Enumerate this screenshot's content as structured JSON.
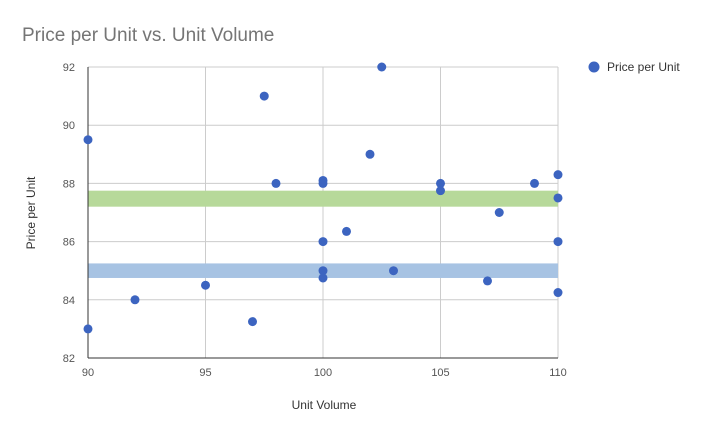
{
  "chart_data": {
    "type": "scatter",
    "title": "Price per Unit vs. Unit Volume",
    "xlabel": "Unit Volume",
    "ylabel": "Price per Unit",
    "xlim": [
      90,
      110
    ],
    "ylim": [
      82,
      92
    ],
    "x_ticks": [
      "90",
      "95",
      "100",
      "105",
      "110"
    ],
    "y_ticks": [
      "82",
      "84",
      "86",
      "88",
      "90",
      "92"
    ],
    "grid": true,
    "legend_position": "right",
    "series": [
      {
        "name": "Price per Unit",
        "color": "#3c64c0",
        "points": [
          {
            "x": 90,
            "y": 89.5
          },
          {
            "x": 90,
            "y": 83.0
          },
          {
            "x": 92,
            "y": 84.0
          },
          {
            "x": 95,
            "y": 84.5
          },
          {
            "x": 97,
            "y": 83.25
          },
          {
            "x": 97.5,
            "y": 91.0
          },
          {
            "x": 98,
            "y": 88.0
          },
          {
            "x": 100,
            "y": 88.1
          },
          {
            "x": 100,
            "y": 88.0
          },
          {
            "x": 100,
            "y": 86.0
          },
          {
            "x": 100,
            "y": 85.0
          },
          {
            "x": 100,
            "y": 84.75
          },
          {
            "x": 101,
            "y": 86.35
          },
          {
            "x": 102,
            "y": 89.0
          },
          {
            "x": 102.5,
            "y": 92.0
          },
          {
            "x": 103,
            "y": 85.0
          },
          {
            "x": 105,
            "y": 88.0
          },
          {
            "x": 105,
            "y": 87.75
          },
          {
            "x": 107,
            "y": 84.65
          },
          {
            "x": 107.5,
            "y": 87.0
          },
          {
            "x": 109,
            "y": 88.0
          },
          {
            "x": 110,
            "y": 88.3
          },
          {
            "x": 110,
            "y": 87.5
          },
          {
            "x": 110,
            "y": 86.0
          },
          {
            "x": 110,
            "y": 84.25
          }
        ]
      }
    ],
    "bands": [
      {
        "y_from": 87.2,
        "y_to": 87.75,
        "color": "#b7d99a"
      },
      {
        "y_from": 84.75,
        "y_to": 85.25,
        "color": "#a7c3e3"
      }
    ]
  }
}
